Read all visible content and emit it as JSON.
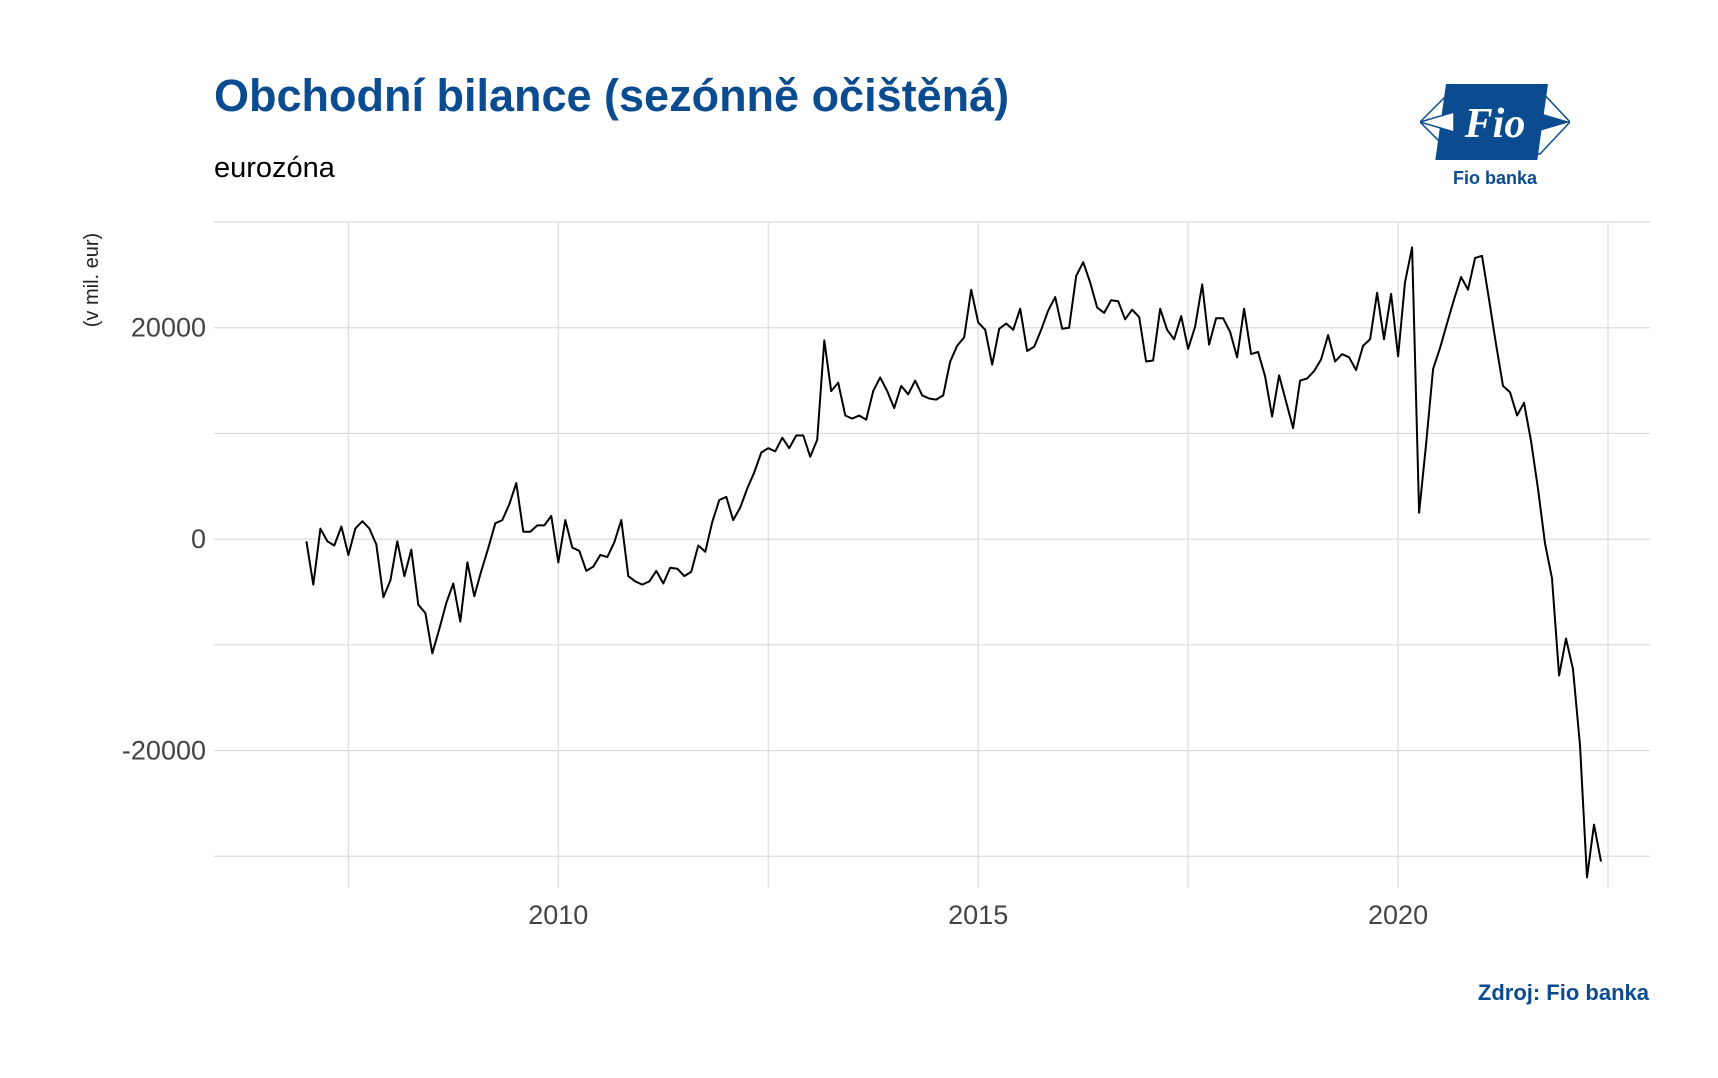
{
  "header": {
    "title": "Obchodní bilance (sezónně očištěná)",
    "subtitle": "eurozóna"
  },
  "logo": {
    "text": "Fio",
    "caption": "Fio banka",
    "color": "#0b4b8f"
  },
  "footer": {
    "source": "Zdroj: Fio banka"
  },
  "chart_data": {
    "type": "line",
    "title": "Obchodní bilance (sezónně očištěná)",
    "subtitle": "eurozóna",
    "xlabel": "",
    "ylabel": "(v mil. eur)",
    "xlim": [
      2005.9,
      2023.0
    ],
    "ylim": [
      -33000,
      30000
    ],
    "x_ticks": [
      2010,
      2015,
      2020
    ],
    "y_ticks": [
      -20000,
      0,
      20000
    ],
    "grid": true,
    "line_color": "#000000",
    "grid_color": "#dcdcdc",
    "series": [
      {
        "values": [
          [
            2007.0,
            -200
          ],
          [
            2007.083,
            -4300
          ],
          [
            2007.167,
            1000
          ],
          [
            2007.25,
            -200
          ],
          [
            2007.333,
            -600
          ],
          [
            2007.417,
            1200
          ],
          [
            2007.5,
            -1500
          ],
          [
            2007.583,
            1000
          ],
          [
            2007.667,
            1700
          ],
          [
            2007.75,
            1000
          ],
          [
            2007.833,
            -500
          ],
          [
            2007.917,
            -5500
          ],
          [
            2008.0,
            -3900
          ],
          [
            2008.083,
            -200
          ],
          [
            2008.167,
            -3500
          ],
          [
            2008.25,
            -1000
          ],
          [
            2008.333,
            -6200
          ],
          [
            2008.417,
            -7000
          ],
          [
            2008.5,
            -10800
          ],
          [
            2008.583,
            -8500
          ],
          [
            2008.667,
            -6000
          ],
          [
            2008.75,
            -4200
          ],
          [
            2008.833,
            -7800
          ],
          [
            2008.917,
            -2200
          ],
          [
            2009.0,
            -5400
          ],
          [
            2009.083,
            -3000
          ],
          [
            2009.167,
            -800
          ],
          [
            2009.25,
            1500
          ],
          [
            2009.333,
            1800
          ],
          [
            2009.417,
            3300
          ],
          [
            2009.5,
            5300
          ],
          [
            2009.583,
            700
          ],
          [
            2009.667,
            700
          ],
          [
            2009.75,
            1300
          ],
          [
            2009.833,
            1300
          ],
          [
            2009.917,
            2200
          ],
          [
            2010.0,
            -2200
          ],
          [
            2010.083,
            1800
          ],
          [
            2010.167,
            -800
          ],
          [
            2010.25,
            -1100
          ],
          [
            2010.333,
            -3000
          ],
          [
            2010.417,
            -2600
          ],
          [
            2010.5,
            -1500
          ],
          [
            2010.583,
            -1700
          ],
          [
            2010.667,
            -300
          ],
          [
            2010.75,
            1800
          ],
          [
            2010.833,
            -3500
          ],
          [
            2010.917,
            -4000
          ],
          [
            2011.0,
            -4300
          ],
          [
            2011.083,
            -4000
          ],
          [
            2011.167,
            -3000
          ],
          [
            2011.25,
            -4200
          ],
          [
            2011.333,
            -2700
          ],
          [
            2011.417,
            -2800
          ],
          [
            2011.5,
            -3500
          ],
          [
            2011.583,
            -3100
          ],
          [
            2011.667,
            -600
          ],
          [
            2011.75,
            -1200
          ],
          [
            2011.833,
            1600
          ],
          [
            2011.917,
            3700
          ],
          [
            2012.0,
            4000
          ],
          [
            2012.083,
            1800
          ],
          [
            2012.167,
            3000
          ],
          [
            2012.25,
            4800
          ],
          [
            2012.333,
            6300
          ],
          [
            2012.417,
            8200
          ],
          [
            2012.5,
            8600
          ],
          [
            2012.583,
            8300
          ],
          [
            2012.667,
            9600
          ],
          [
            2012.75,
            8600
          ],
          [
            2012.833,
            9800
          ],
          [
            2012.917,
            9800
          ],
          [
            2013.0,
            7800
          ],
          [
            2013.083,
            9400
          ],
          [
            2013.167,
            18800
          ],
          [
            2013.25,
            14000
          ],
          [
            2013.333,
            14800
          ],
          [
            2013.417,
            11700
          ],
          [
            2013.5,
            11400
          ],
          [
            2013.583,
            11700
          ],
          [
            2013.667,
            11300
          ],
          [
            2013.75,
            14000
          ],
          [
            2013.833,
            15300
          ],
          [
            2013.917,
            14000
          ],
          [
            2014.0,
            12400
          ],
          [
            2014.083,
            14500
          ],
          [
            2014.167,
            13700
          ],
          [
            2014.25,
            15000
          ],
          [
            2014.333,
            13600
          ],
          [
            2014.417,
            13300
          ],
          [
            2014.5,
            13200
          ],
          [
            2014.583,
            13600
          ],
          [
            2014.667,
            16800
          ],
          [
            2014.75,
            18300
          ],
          [
            2014.833,
            19100
          ],
          [
            2014.917,
            23600
          ],
          [
            2015.0,
            20500
          ],
          [
            2015.083,
            19800
          ],
          [
            2015.167,
            16500
          ],
          [
            2015.25,
            19900
          ],
          [
            2015.333,
            20400
          ],
          [
            2015.417,
            19800
          ],
          [
            2015.5,
            21800
          ],
          [
            2015.583,
            17800
          ],
          [
            2015.667,
            18200
          ],
          [
            2015.75,
            19800
          ],
          [
            2015.833,
            21600
          ],
          [
            2015.917,
            22900
          ],
          [
            2016.0,
            19900
          ],
          [
            2016.083,
            20000
          ],
          [
            2016.167,
            24900
          ],
          [
            2016.25,
            26200
          ],
          [
            2016.333,
            24300
          ],
          [
            2016.417,
            21900
          ],
          [
            2016.5,
            21400
          ],
          [
            2016.583,
            22600
          ],
          [
            2016.667,
            22500
          ],
          [
            2016.75,
            20800
          ],
          [
            2016.833,
            21700
          ],
          [
            2016.917,
            21000
          ],
          [
            2017.0,
            16800
          ],
          [
            2017.083,
            16900
          ],
          [
            2017.167,
            21800
          ],
          [
            2017.25,
            19800
          ],
          [
            2017.333,
            18900
          ],
          [
            2017.417,
            21100
          ],
          [
            2017.5,
            18000
          ],
          [
            2017.583,
            20100
          ],
          [
            2017.667,
            24100
          ],
          [
            2017.75,
            18400
          ],
          [
            2017.833,
            20900
          ],
          [
            2017.917,
            20900
          ],
          [
            2018.0,
            19600
          ],
          [
            2018.083,
            17200
          ],
          [
            2018.167,
            21800
          ],
          [
            2018.25,
            17500
          ],
          [
            2018.333,
            17700
          ],
          [
            2018.417,
            15400
          ],
          [
            2018.5,
            11600
          ],
          [
            2018.583,
            15500
          ],
          [
            2018.667,
            13000
          ],
          [
            2018.75,
            10500
          ],
          [
            2018.833,
            15000
          ],
          [
            2018.917,
            15200
          ],
          [
            2019.0,
            15900
          ],
          [
            2019.083,
            17000
          ],
          [
            2019.167,
            19300
          ],
          [
            2019.25,
            16800
          ],
          [
            2019.333,
            17500
          ],
          [
            2019.417,
            17200
          ],
          [
            2019.5,
            16000
          ],
          [
            2019.583,
            18300
          ],
          [
            2019.667,
            18900
          ],
          [
            2019.75,
            23300
          ],
          [
            2019.833,
            18900
          ],
          [
            2019.917,
            23200
          ],
          [
            2020.0,
            17300
          ],
          [
            2020.083,
            24300
          ],
          [
            2020.167,
            27600
          ],
          [
            2020.25,
            2500
          ],
          [
            2020.333,
            8900
          ],
          [
            2020.417,
            16100
          ],
          [
            2020.5,
            18100
          ],
          [
            2020.583,
            20400
          ],
          [
            2020.667,
            22700
          ],
          [
            2020.75,
            24800
          ],
          [
            2020.833,
            23600
          ],
          [
            2020.917,
            26600
          ],
          [
            2021.0,
            26800
          ],
          [
            2021.083,
            22700
          ],
          [
            2021.167,
            18400
          ],
          [
            2021.25,
            14500
          ],
          [
            2021.333,
            13900
          ],
          [
            2021.417,
            11700
          ],
          [
            2021.5,
            12900
          ],
          [
            2021.583,
            9300
          ],
          [
            2021.667,
            4700
          ],
          [
            2021.75,
            -400
          ],
          [
            2021.833,
            -3700
          ],
          [
            2021.917,
            -12900
          ],
          [
            2022.0,
            -9400
          ],
          [
            2022.083,
            -12300
          ],
          [
            2022.167,
            -19500
          ],
          [
            2022.25,
            -32000
          ],
          [
            2022.333,
            -27000
          ],
          [
            2022.417,
            -30500
          ]
        ]
      }
    ]
  }
}
